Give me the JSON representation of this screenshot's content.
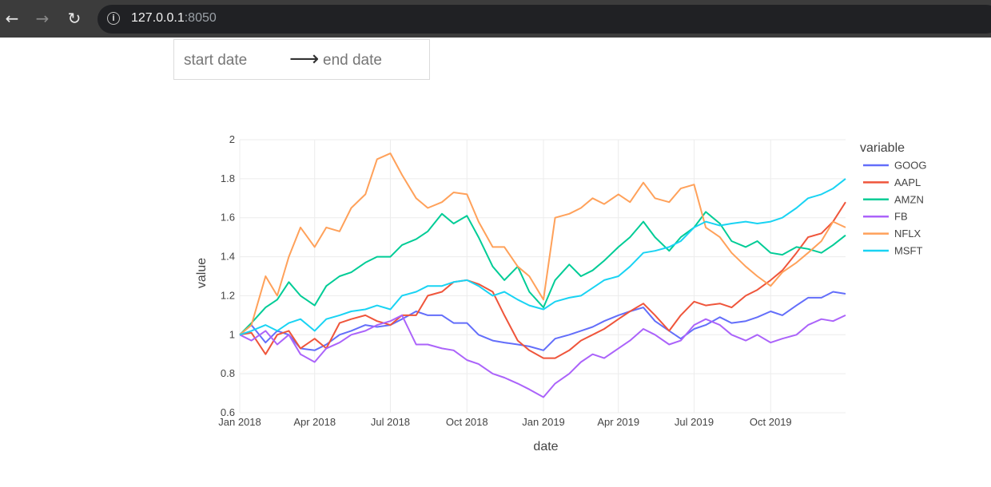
{
  "browser": {
    "back_icon": "arrow-left-icon",
    "forward_icon": "arrow-right-icon",
    "reload_icon": "reload-icon",
    "info_icon": "info-icon",
    "url_host": "127.0.0.1",
    "url_port": ":8050"
  },
  "date_picker": {
    "start_placeholder": "start date",
    "end_placeholder": "end date",
    "arrow_icon": "arrow-right-icon"
  },
  "chart_data": {
    "type": "line",
    "xlabel": "date",
    "ylabel": "value",
    "legend_title": "variable",
    "legend_position": "right",
    "grid": true,
    "xlim": [
      "2018-01-01",
      "2019-12-30"
    ],
    "ylim": [
      0.6,
      2.0
    ],
    "x_ticks": [
      "2018-01-01",
      "2018-04-01",
      "2018-07-01",
      "2018-10-01",
      "2019-01-01",
      "2019-04-01",
      "2019-07-01",
      "2019-10-01"
    ],
    "x_tick_labels": [
      "Jan 2018",
      "Apr 2018",
      "Jul 2018",
      "Oct 2018",
      "Jan 2019",
      "Apr 2019",
      "Jul 2019",
      "Oct 2019"
    ],
    "y_ticks": [
      0.6,
      0.8,
      1,
      1.2,
      1.4,
      1.6,
      1.8,
      2
    ],
    "y_tick_labels": [
      "0.6",
      "0.8",
      "1",
      "1.2",
      "1.4",
      "1.6",
      "1.8",
      "2"
    ],
    "x": [
      "2018-01-01",
      "2018-01-15",
      "2018-02-01",
      "2018-02-15",
      "2018-03-01",
      "2018-03-15",
      "2018-04-01",
      "2018-04-15",
      "2018-05-01",
      "2018-05-15",
      "2018-06-01",
      "2018-06-15",
      "2018-07-01",
      "2018-07-15",
      "2018-08-01",
      "2018-08-15",
      "2018-09-01",
      "2018-09-15",
      "2018-10-01",
      "2018-10-15",
      "2018-11-01",
      "2018-11-15",
      "2018-12-01",
      "2018-12-15",
      "2019-01-01",
      "2019-01-15",
      "2019-02-01",
      "2019-02-15",
      "2019-03-01",
      "2019-03-15",
      "2019-04-01",
      "2019-04-15",
      "2019-05-01",
      "2019-05-15",
      "2019-06-01",
      "2019-06-15",
      "2019-07-01",
      "2019-07-15",
      "2019-08-01",
      "2019-08-15",
      "2019-09-01",
      "2019-09-15",
      "2019-10-01",
      "2019-10-15",
      "2019-11-01",
      "2019-11-15",
      "2019-12-01",
      "2019-12-15",
      "2019-12-30"
    ],
    "series": [
      {
        "name": "GOOG",
        "color": "#636efa",
        "values": [
          1.0,
          1.05,
          0.96,
          1.02,
          1.0,
          0.93,
          0.92,
          0.95,
          1.0,
          1.02,
          1.05,
          1.04,
          1.05,
          1.08,
          1.12,
          1.1,
          1.1,
          1.06,
          1.06,
          1.0,
          0.97,
          0.96,
          0.95,
          0.94,
          0.92,
          0.98,
          1.0,
          1.02,
          1.04,
          1.07,
          1.1,
          1.12,
          1.14,
          1.07,
          1.02,
          0.98,
          1.03,
          1.05,
          1.09,
          1.06,
          1.07,
          1.09,
          1.12,
          1.1,
          1.15,
          1.19,
          1.19,
          1.22,
          1.21
        ]
      },
      {
        "name": "AAPL",
        "color": "#ef553b",
        "values": [
          1.0,
          1.01,
          0.9,
          1.0,
          1.02,
          0.93,
          0.98,
          0.93,
          1.06,
          1.08,
          1.1,
          1.07,
          1.05,
          1.1,
          1.1,
          1.2,
          1.22,
          1.27,
          1.28,
          1.26,
          1.22,
          1.1,
          0.97,
          0.92,
          0.88,
          0.88,
          0.92,
          0.97,
          1.0,
          1.03,
          1.08,
          1.12,
          1.16,
          1.1,
          1.02,
          1.1,
          1.17,
          1.15,
          1.16,
          1.14,
          1.2,
          1.23,
          1.28,
          1.33,
          1.42,
          1.5,
          1.52,
          1.58,
          1.68
        ]
      },
      {
        "name": "AMZN",
        "color": "#00cc96",
        "values": [
          1.0,
          1.06,
          1.14,
          1.18,
          1.27,
          1.2,
          1.15,
          1.25,
          1.3,
          1.32,
          1.37,
          1.4,
          1.4,
          1.46,
          1.49,
          1.53,
          1.62,
          1.57,
          1.61,
          1.5,
          1.35,
          1.28,
          1.35,
          1.22,
          1.14,
          1.28,
          1.36,
          1.3,
          1.33,
          1.38,
          1.45,
          1.5,
          1.58,
          1.5,
          1.43,
          1.5,
          1.55,
          1.63,
          1.57,
          1.48,
          1.45,
          1.48,
          1.42,
          1.41,
          1.45,
          1.44,
          1.42,
          1.46,
          1.51
        ]
      },
      {
        "name": "FB",
        "color": "#ab63fa",
        "values": [
          1.0,
          0.97,
          1.02,
          0.95,
          1.0,
          0.9,
          0.86,
          0.93,
          0.96,
          1.0,
          1.02,
          1.05,
          1.07,
          1.1,
          0.95,
          0.95,
          0.93,
          0.92,
          0.87,
          0.85,
          0.8,
          0.78,
          0.75,
          0.72,
          0.68,
          0.75,
          0.8,
          0.86,
          0.9,
          0.88,
          0.93,
          0.97,
          1.03,
          1.0,
          0.95,
          0.97,
          1.05,
          1.08,
          1.05,
          1.0,
          0.97,
          1.0,
          0.96,
          0.98,
          1.0,
          1.05,
          1.08,
          1.07,
          1.1
        ]
      },
      {
        "name": "NFLX",
        "color": "#ffa15a",
        "values": [
          1.0,
          1.05,
          1.3,
          1.2,
          1.4,
          1.55,
          1.45,
          1.55,
          1.53,
          1.65,
          1.72,
          1.9,
          1.93,
          1.82,
          1.7,
          1.65,
          1.68,
          1.73,
          1.72,
          1.58,
          1.45,
          1.45,
          1.35,
          1.3,
          1.18,
          1.6,
          1.62,
          1.65,
          1.7,
          1.67,
          1.72,
          1.68,
          1.78,
          1.7,
          1.68,
          1.75,
          1.77,
          1.55,
          1.5,
          1.42,
          1.35,
          1.3,
          1.25,
          1.32,
          1.37,
          1.42,
          1.48,
          1.58,
          1.55
        ]
      },
      {
        "name": "MSFT",
        "color": "#19d3f3",
        "values": [
          1.0,
          1.02,
          1.05,
          1.02,
          1.06,
          1.08,
          1.02,
          1.08,
          1.1,
          1.12,
          1.13,
          1.15,
          1.13,
          1.2,
          1.22,
          1.25,
          1.25,
          1.27,
          1.28,
          1.25,
          1.2,
          1.22,
          1.18,
          1.15,
          1.13,
          1.17,
          1.19,
          1.2,
          1.24,
          1.28,
          1.3,
          1.35,
          1.42,
          1.43,
          1.45,
          1.48,
          1.55,
          1.58,
          1.56,
          1.57,
          1.58,
          1.57,
          1.58,
          1.6,
          1.65,
          1.7,
          1.72,
          1.75,
          1.8
        ]
      }
    ]
  }
}
